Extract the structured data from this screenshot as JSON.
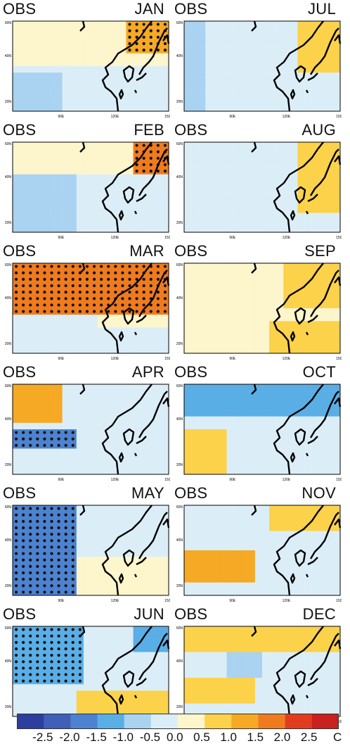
{
  "panels": [
    {
      "left": "OBS",
      "right": "JAN",
      "mon": 1
    },
    {
      "left": "OBS",
      "right": "JUL",
      "mon": 7
    },
    {
      "left": "OBS",
      "right": "FEB",
      "mon": 2
    },
    {
      "left": "OBS",
      "right": "AUG",
      "mon": 8
    },
    {
      "left": "OBS",
      "right": "MAR",
      "mon": 3
    },
    {
      "left": "OBS",
      "right": "SEP",
      "mon": 9
    },
    {
      "left": "OBS",
      "right": "APR",
      "mon": 4
    },
    {
      "left": "OBS",
      "right": "OCT",
      "mon": 10
    },
    {
      "left": "OBS",
      "right": "MAY",
      "mon": 5
    },
    {
      "left": "OBS",
      "right": "NOV",
      "mon": 11
    },
    {
      "left": "OBS",
      "right": "JUN",
      "mon": 6
    },
    {
      "left": "OBS",
      "right": "DEC",
      "mon": 12
    }
  ],
  "axes": {
    "x_ticks": [
      "90E",
      "120E",
      "150E"
    ],
    "y_ticks": [
      "20N",
      "40N",
      "60N"
    ]
  },
  "colorbar": {
    "labels": [
      "-2.5",
      "-2.0",
      "-1.5",
      "-1.0",
      "-0.5",
      "0.0",
      "0.5",
      "1.0",
      "1.5",
      "2.0",
      "2.5"
    ],
    "unit": "C",
    "colors": [
      "#2c3e9e",
      "#3f5fb8",
      "#4c82cf",
      "#5aaee6",
      "#a9d3f0",
      "#dbeef8",
      "#fdf5cc",
      "#fbd24a",
      "#f6a924",
      "#ef7b1e",
      "#e23c1f",
      "#c81f1f"
    ]
  },
  "chart_data": {
    "type": "heatmap",
    "title": "",
    "x_range": [
      "70E",
      "150E"
    ],
    "y_range": [
      "15N",
      "60N"
    ],
    "value_range": [
      -2.5,
      2.5
    ],
    "unit": "C",
    "series": [
      {
        "name": "JAN",
        "summary": "warm anomalies over northeast China/Korea/Japan and north; cool in the south-west"
      },
      {
        "name": "FEB",
        "summary": "warm over north and northeast, cool patches in west"
      },
      {
        "name": "MAR",
        "summary": "strong warm anomaly (>2.0 C) over most of domain north of 30N"
      },
      {
        "name": "APR",
        "summary": "warm in northwest, cool (-1.0 to -1.5) over Tibetan plateau"
      },
      {
        "name": "MAY",
        "summary": "cool anomalies (-1.0 to -2.0) over western part"
      },
      {
        "name": "JUN",
        "summary": "cool over west, warm over south China"
      },
      {
        "name": "JUL",
        "summary": "weak anomalies, warm over Japan"
      },
      {
        "name": "AUG",
        "summary": "weak warm anomalies, warm over Japan/Pacific"
      },
      {
        "name": "SEP",
        "summary": "warm over northeast and Japan"
      },
      {
        "name": "OCT",
        "summary": "cool in north, warm over Tibetan plateau"
      },
      {
        "name": "NOV",
        "summary": "warm over Tibetan plateau and northeast"
      },
      {
        "name": "DEC",
        "summary": "warm over north, warm over Tibetan plateau, cool patch center"
      }
    ]
  }
}
